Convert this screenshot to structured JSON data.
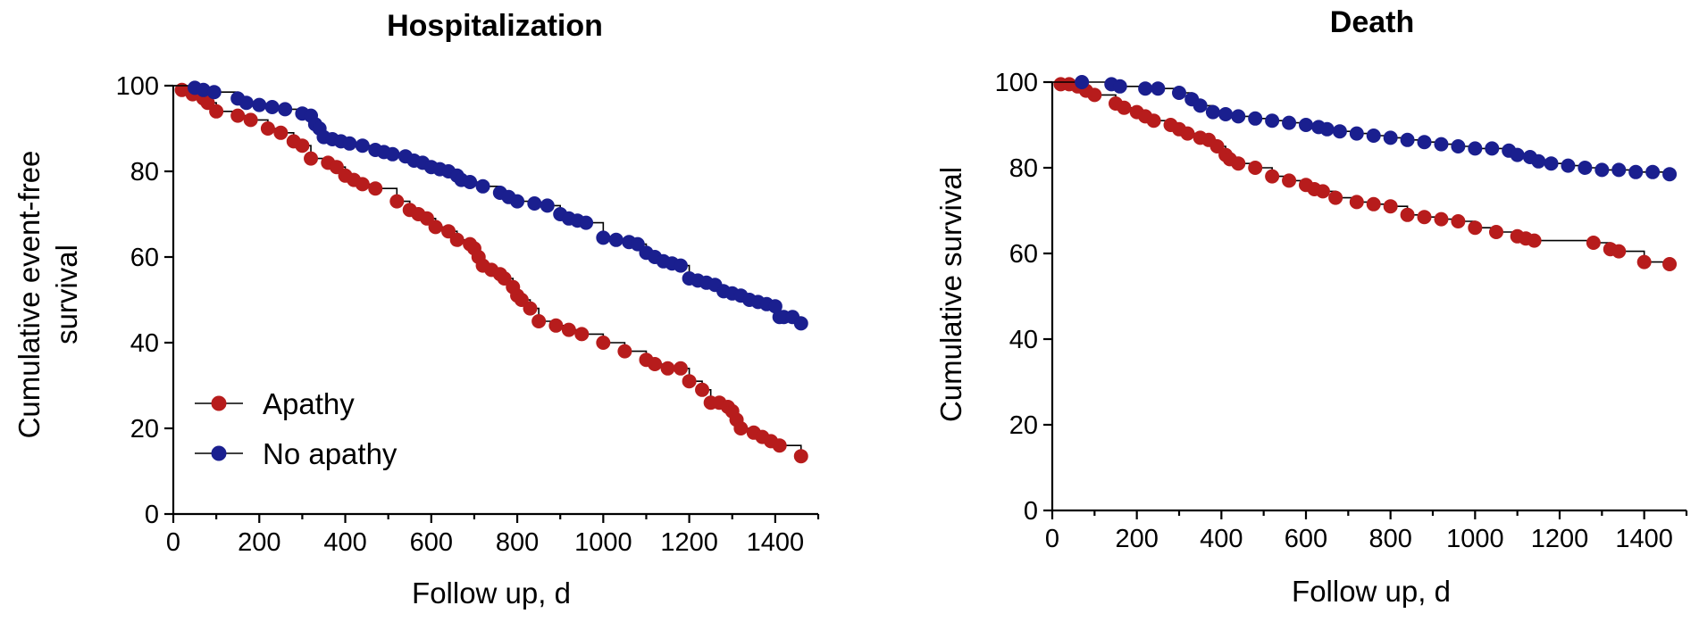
{
  "colors": {
    "apathy": "#b71c1c",
    "no_apathy": "#1a1f8f",
    "line": "#000000"
  },
  "chart_data": [
    {
      "type": "line",
      "subtype": "kaplan-meier",
      "title": "Hospitalization",
      "xlabel": "Follow up, d",
      "ylabel_lines": [
        "Cumulative event-free",
        "survival"
      ],
      "xlim": [
        0,
        1500
      ],
      "ylim": [
        0,
        100
      ],
      "xticks": [
        "0",
        "200",
        "400",
        "600",
        "800",
        "1000",
        "1200",
        "1400"
      ],
      "yticks": [
        "0",
        "20",
        "40",
        "60",
        "80",
        "100"
      ],
      "legend": {
        "placement": "bottom-left",
        "entries": [
          "Apathy",
          "No apathy"
        ]
      },
      "series": [
        {
          "name": "Apathy",
          "color": "#b71c1c",
          "points": [
            [
              20,
              99
            ],
            [
              45,
              98
            ],
            [
              70,
              97
            ],
            [
              80,
              96
            ],
            [
              100,
              94
            ],
            [
              150,
              93
            ],
            [
              180,
              92
            ],
            [
              220,
              90
            ],
            [
              250,
              89
            ],
            [
              280,
              87
            ],
            [
              300,
              86
            ],
            [
              320,
              83
            ],
            [
              360,
              82
            ],
            [
              380,
              81
            ],
            [
              400,
              79
            ],
            [
              420,
              78
            ],
            [
              440,
              77
            ],
            [
              470,
              76
            ],
            [
              520,
              73
            ],
            [
              550,
              71
            ],
            [
              570,
              70
            ],
            [
              590,
              69
            ],
            [
              610,
              67
            ],
            [
              640,
              66
            ],
            [
              660,
              64
            ],
            [
              690,
              63
            ],
            [
              700,
              62
            ],
            [
              710,
              60
            ],
            [
              720,
              58
            ],
            [
              740,
              57
            ],
            [
              760,
              56
            ],
            [
              770,
              55
            ],
            [
              790,
              53
            ],
            [
              800,
              51
            ],
            [
              810,
              50
            ],
            [
              830,
              48
            ],
            [
              850,
              45
            ],
            [
              890,
              44
            ],
            [
              920,
              43
            ],
            [
              950,
              42
            ],
            [
              1000,
              40
            ],
            [
              1050,
              38
            ],
            [
              1100,
              36
            ],
            [
              1120,
              35
            ],
            [
              1150,
              34
            ],
            [
              1180,
              34
            ],
            [
              1200,
              31
            ],
            [
              1230,
              29
            ],
            [
              1250,
              26
            ],
            [
              1270,
              26
            ],
            [
              1290,
              25
            ],
            [
              1300,
              24
            ],
            [
              1310,
              22
            ],
            [
              1320,
              20
            ],
            [
              1350,
              19
            ],
            [
              1370,
              18
            ],
            [
              1390,
              17
            ],
            [
              1410,
              16
            ],
            [
              1460,
              13.5
            ]
          ]
        },
        {
          "name": "No apathy",
          "color": "#1a1f8f",
          "points": [
            [
              50,
              99.5
            ],
            [
              70,
              99
            ],
            [
              95,
              98.5
            ],
            [
              150,
              97
            ],
            [
              170,
              96
            ],
            [
              200,
              95.5
            ],
            [
              230,
              95
            ],
            [
              260,
              94.5
            ],
            [
              300,
              93.5
            ],
            [
              320,
              93
            ],
            [
              330,
              91
            ],
            [
              340,
              90
            ],
            [
              350,
              88
            ],
            [
              370,
              87.5
            ],
            [
              390,
              87
            ],
            [
              410,
              86.5
            ],
            [
              440,
              86
            ],
            [
              470,
              85
            ],
            [
              490,
              84.5
            ],
            [
              510,
              84
            ],
            [
              540,
              83.5
            ],
            [
              560,
              82.5
            ],
            [
              580,
              82
            ],
            [
              600,
              81
            ],
            [
              620,
              80.5
            ],
            [
              640,
              80
            ],
            [
              660,
              79
            ],
            [
              670,
              78
            ],
            [
              690,
              77.5
            ],
            [
              720,
              76.5
            ],
            [
              760,
              75
            ],
            [
              780,
              74
            ],
            [
              800,
              73
            ],
            [
              840,
              72.5
            ],
            [
              870,
              72
            ],
            [
              900,
              70
            ],
            [
              920,
              69
            ],
            [
              940,
              68.5
            ],
            [
              960,
              68
            ],
            [
              1000,
              64.5
            ],
            [
              1030,
              64
            ],
            [
              1060,
              63.5
            ],
            [
              1080,
              63
            ],
            [
              1100,
              61
            ],
            [
              1120,
              60
            ],
            [
              1140,
              59
            ],
            [
              1160,
              58.5
            ],
            [
              1180,
              58
            ],
            [
              1200,
              55
            ],
            [
              1220,
              54.5
            ],
            [
              1240,
              54
            ],
            [
              1260,
              53.5
            ],
            [
              1280,
              52
            ],
            [
              1300,
              51.5
            ],
            [
              1320,
              51
            ],
            [
              1340,
              50
            ],
            [
              1360,
              49.5
            ],
            [
              1380,
              49
            ],
            [
              1400,
              48.5
            ],
            [
              1410,
              46
            ],
            [
              1420,
              46
            ],
            [
              1440,
              46
            ],
            [
              1460,
              44.5
            ]
          ]
        }
      ]
    },
    {
      "type": "line",
      "subtype": "kaplan-meier",
      "title": "Death",
      "xlabel": "Follow up, d",
      "ylabel_lines": [
        "Cumulative survival"
      ],
      "xlim": [
        0,
        1500
      ],
      "ylim": [
        0,
        100
      ],
      "xticks": [
        "0",
        "200",
        "400",
        "600",
        "800",
        "1000",
        "1200",
        "1400"
      ],
      "yticks": [
        "0",
        "20",
        "40",
        "60",
        "80",
        "100"
      ],
      "series": [
        {
          "name": "Apathy",
          "color": "#b71c1c",
          "points": [
            [
              20,
              99.5
            ],
            [
              40,
              99.5
            ],
            [
              60,
              99
            ],
            [
              80,
              98
            ],
            [
              100,
              97
            ],
            [
              150,
              95
            ],
            [
              170,
              94
            ],
            [
              200,
              93
            ],
            [
              220,
              92
            ],
            [
              240,
              91
            ],
            [
              280,
              90
            ],
            [
              300,
              89
            ],
            [
              320,
              88
            ],
            [
              350,
              87
            ],
            [
              370,
              86.5
            ],
            [
              390,
              85
            ],
            [
              410,
              83
            ],
            [
              420,
              82
            ],
            [
              440,
              81
            ],
            [
              480,
              80
            ],
            [
              520,
              78
            ],
            [
              560,
              77
            ],
            [
              600,
              76
            ],
            [
              620,
              75
            ],
            [
              640,
              74.5
            ],
            [
              670,
              73
            ],
            [
              720,
              72
            ],
            [
              760,
              71.5
            ],
            [
              800,
              71
            ],
            [
              840,
              69
            ],
            [
              880,
              68.5
            ],
            [
              920,
              68
            ],
            [
              960,
              67.5
            ],
            [
              1000,
              66
            ],
            [
              1050,
              65
            ],
            [
              1100,
              64
            ],
            [
              1120,
              63.5
            ],
            [
              1140,
              63
            ],
            [
              1280,
              62.5
            ],
            [
              1320,
              61
            ],
            [
              1340,
              60.5
            ],
            [
              1400,
              58
            ],
            [
              1460,
              57.5
            ]
          ]
        },
        {
          "name": "No apathy",
          "color": "#1a1f8f",
          "points": [
            [
              70,
              100
            ],
            [
              140,
              99.5
            ],
            [
              160,
              99
            ],
            [
              220,
              98.5
            ],
            [
              250,
              98.5
            ],
            [
              300,
              97.5
            ],
            [
              330,
              96
            ],
            [
              350,
              94.5
            ],
            [
              380,
              93
            ],
            [
              410,
              92.5
            ],
            [
              440,
              92
            ],
            [
              480,
              91.5
            ],
            [
              520,
              91
            ],
            [
              560,
              90.5
            ],
            [
              600,
              90
            ],
            [
              630,
              89.5
            ],
            [
              650,
              89
            ],
            [
              680,
              88.5
            ],
            [
              720,
              88
            ],
            [
              760,
              87.5
            ],
            [
              800,
              87
            ],
            [
              840,
              86.5
            ],
            [
              880,
              86
            ],
            [
              920,
              85.5
            ],
            [
              960,
              85
            ],
            [
              1000,
              84.5
            ],
            [
              1040,
              84.5
            ],
            [
              1080,
              84
            ],
            [
              1100,
              83
            ],
            [
              1130,
              82.5
            ],
            [
              1150,
              81.5
            ],
            [
              1180,
              81
            ],
            [
              1220,
              80.5
            ],
            [
              1260,
              80
            ],
            [
              1300,
              79.5
            ],
            [
              1340,
              79.5
            ],
            [
              1380,
              79
            ],
            [
              1420,
              79
            ],
            [
              1460,
              78.5
            ]
          ]
        }
      ]
    }
  ]
}
